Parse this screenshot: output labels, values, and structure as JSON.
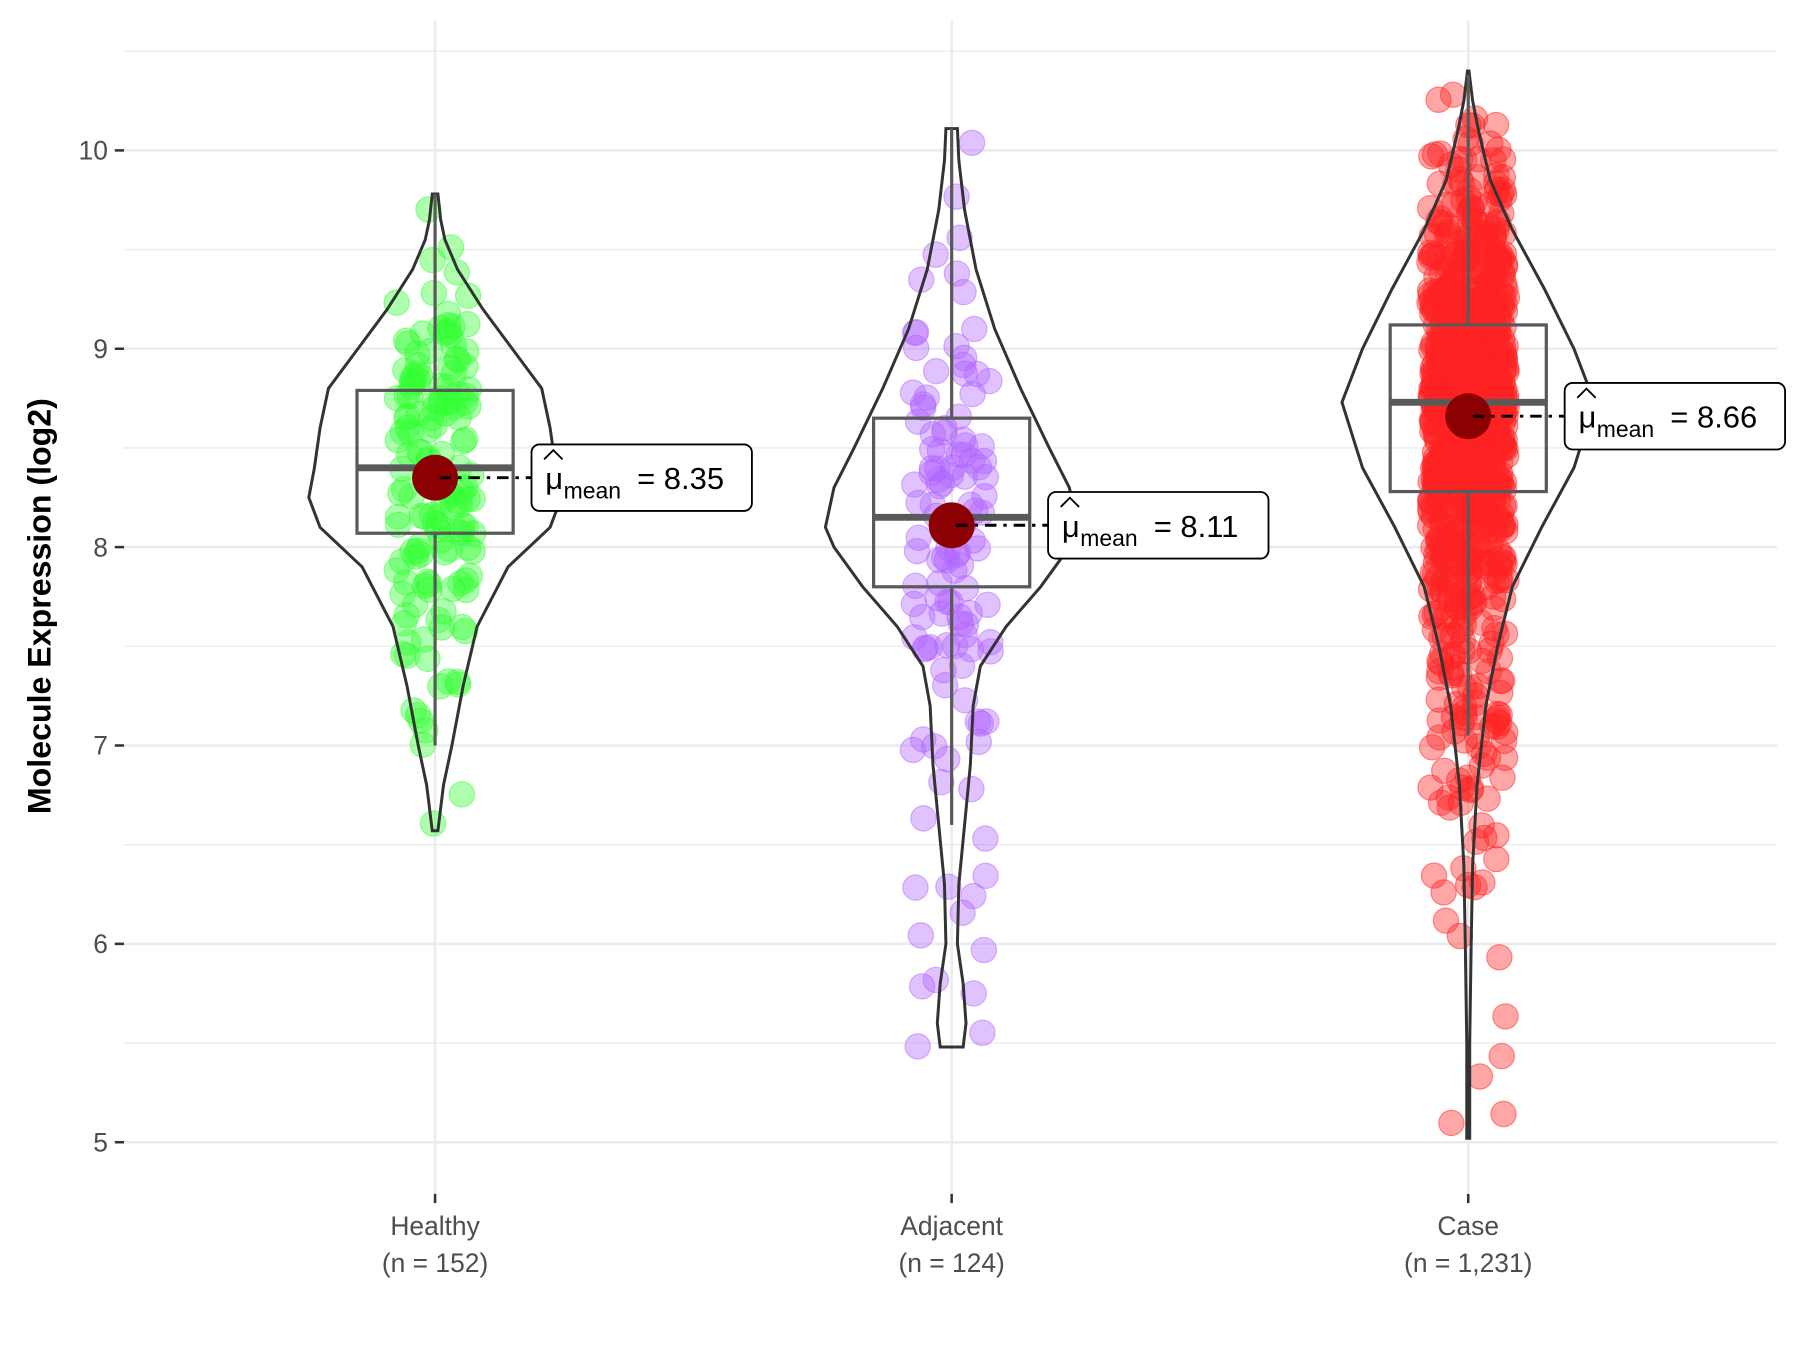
{
  "chart_data": {
    "type": "violin",
    "title": "",
    "xlabel": "",
    "ylabel": "Molecule Expression (log2)",
    "ylim": [
      4.75,
      10.5
    ],
    "yticks": [
      5,
      6,
      7,
      8,
      9,
      10
    ],
    "ytick_labels": [
      "5",
      "6",
      "7",
      "8",
      "9",
      "10"
    ],
    "grid": true,
    "legend": "none",
    "mean_symbol": "μ",
    "mean_subscript": "mean",
    "groups": [
      {
        "name": "Healthy",
        "n_label": "(n = 152)",
        "n": 152,
        "color": "#33ff33",
        "mean": 8.35,
        "mean_label": "8.35",
        "median": 8.4,
        "q1": 8.07,
        "q3": 8.79,
        "whisker_low": 7.0,
        "whisker_high": 9.78,
        "min": 6.57,
        "max": 9.78,
        "density": [
          [
            6.57,
            0.02
          ],
          [
            6.8,
            0.06
          ],
          [
            7.0,
            0.12
          ],
          [
            7.3,
            0.2
          ],
          [
            7.6,
            0.3
          ],
          [
            7.9,
            0.52
          ],
          [
            8.1,
            0.82
          ],
          [
            8.25,
            0.9
          ],
          [
            8.4,
            0.86
          ],
          [
            8.6,
            0.82
          ],
          [
            8.8,
            0.76
          ],
          [
            9.0,
            0.55
          ],
          [
            9.2,
            0.34
          ],
          [
            9.4,
            0.16
          ],
          [
            9.55,
            0.07
          ],
          [
            9.65,
            0.04
          ],
          [
            9.78,
            0.02
          ]
        ]
      },
      {
        "name": "Adjacent",
        "n_label": "(n = 124)",
        "n": 124,
        "color": "#b266ff",
        "mean": 8.11,
        "mean_label": "8.11",
        "median": 8.15,
        "q1": 7.8,
        "q3": 8.65,
        "whisker_low": 6.6,
        "whisker_high": 10.11,
        "min": 5.48,
        "max": 10.11,
        "density": [
          [
            5.48,
            0.08
          ],
          [
            5.6,
            0.1
          ],
          [
            5.8,
            0.08
          ],
          [
            6.0,
            0.04
          ],
          [
            6.3,
            0.05
          ],
          [
            6.6,
            0.09
          ],
          [
            6.9,
            0.13
          ],
          [
            7.2,
            0.15
          ],
          [
            7.4,
            0.2
          ],
          [
            7.6,
            0.38
          ],
          [
            7.8,
            0.62
          ],
          [
            8.0,
            0.82
          ],
          [
            8.1,
            0.88
          ],
          [
            8.3,
            0.82
          ],
          [
            8.5,
            0.68
          ],
          [
            8.8,
            0.48
          ],
          [
            9.1,
            0.3
          ],
          [
            9.4,
            0.17
          ],
          [
            9.7,
            0.09
          ],
          [
            9.95,
            0.05
          ],
          [
            10.11,
            0.04
          ]
        ]
      },
      {
        "name": "Case",
        "n_label": "(n = 1,231)",
        "n": 1231,
        "color": "#ff2222",
        "mean": 8.66,
        "mean_label": "8.66",
        "median": 8.73,
        "q1": 8.28,
        "q3": 9.12,
        "whisker_low": 7.05,
        "whisker_high": 10.38,
        "min": 5.02,
        "max": 10.4,
        "density": [
          [
            5.02,
            0.01
          ],
          [
            5.5,
            0.01
          ],
          [
            6.0,
            0.02
          ],
          [
            6.4,
            0.03
          ],
          [
            6.8,
            0.06
          ],
          [
            7.2,
            0.12
          ],
          [
            7.5,
            0.2
          ],
          [
            7.8,
            0.3
          ],
          [
            8.1,
            0.5
          ],
          [
            8.4,
            0.72
          ],
          [
            8.73,
            0.86
          ],
          [
            9.0,
            0.72
          ],
          [
            9.3,
            0.52
          ],
          [
            9.6,
            0.3
          ],
          [
            9.85,
            0.15
          ],
          [
            10.1,
            0.07
          ],
          [
            10.25,
            0.03
          ],
          [
            10.4,
            0.005
          ]
        ]
      }
    ]
  }
}
